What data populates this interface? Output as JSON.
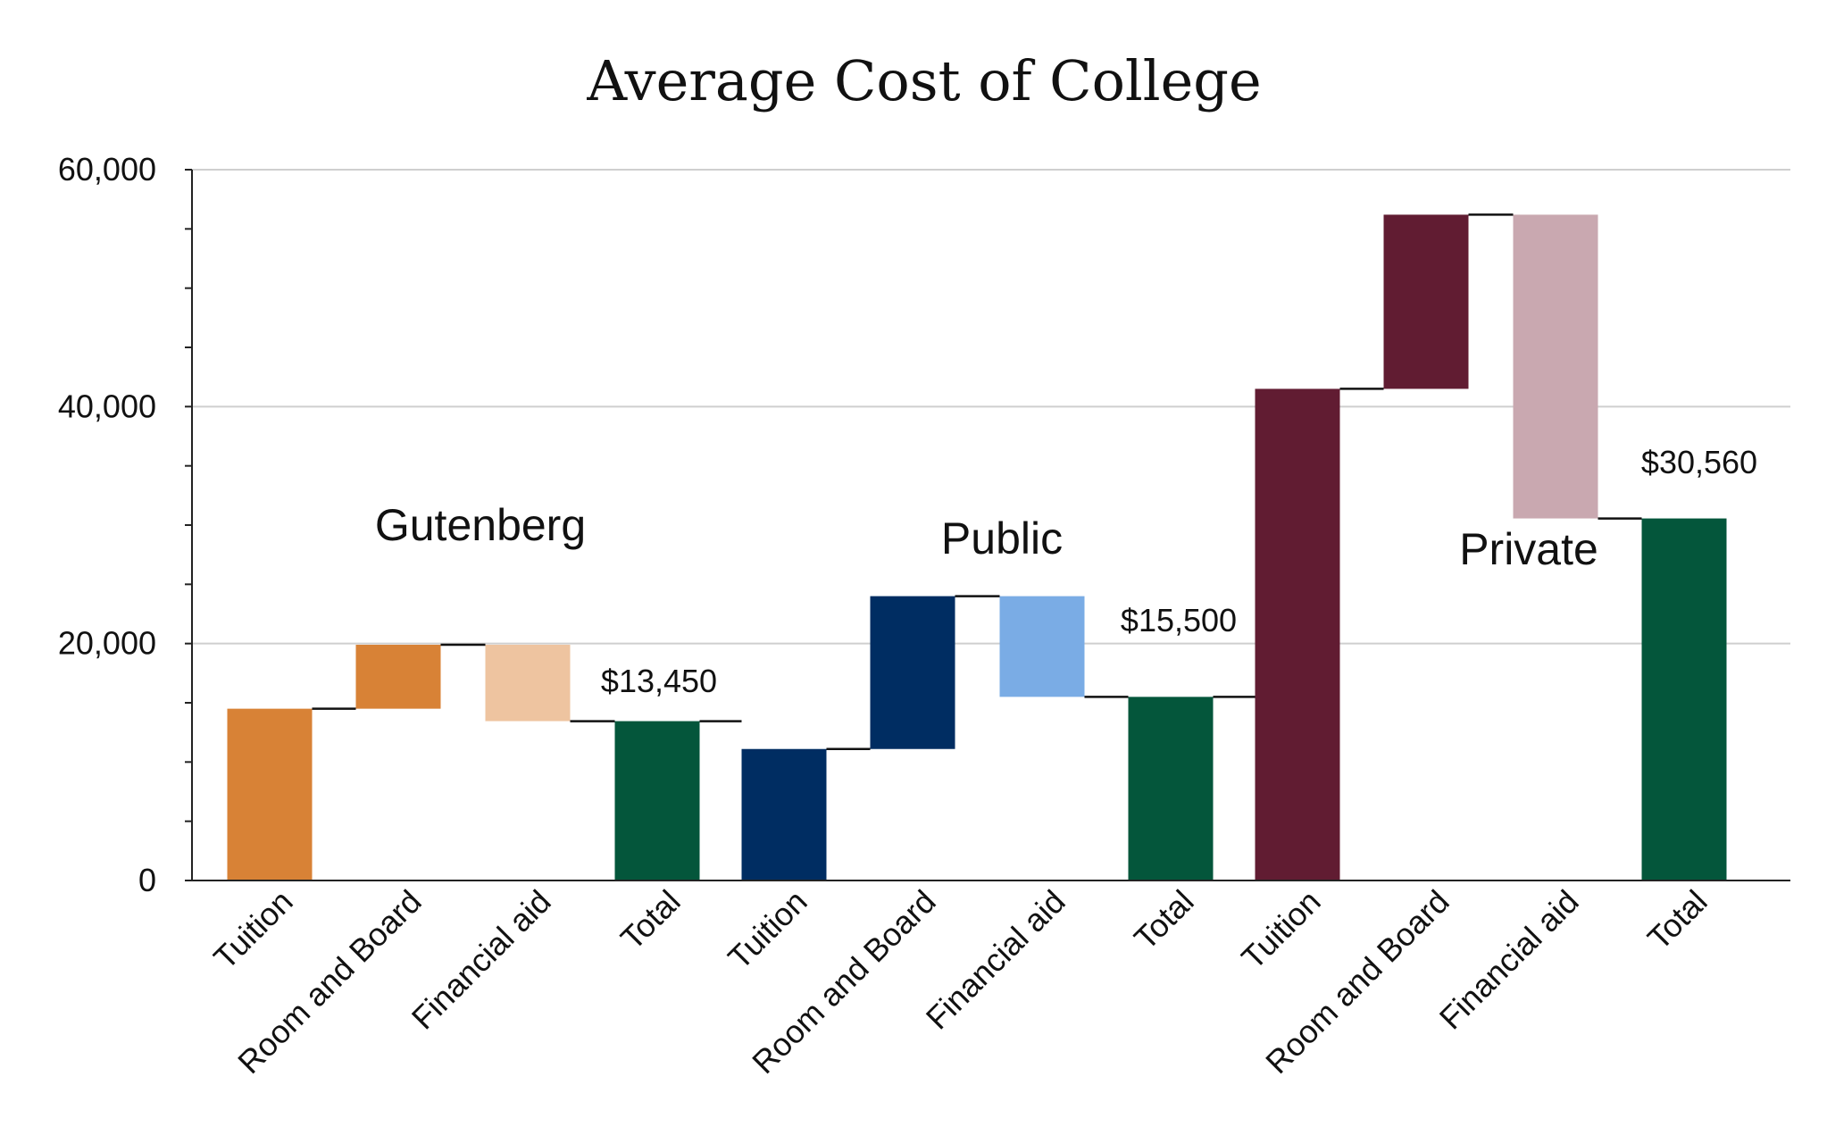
{
  "chart_data": {
    "type": "bar",
    "subtype": "waterfall",
    "title": "Average Cost of College",
    "xlabel": "",
    "ylabel": "",
    "ylim": [
      0,
      60000
    ],
    "yticks": [
      "0",
      "20,000",
      "40,000",
      "60,000"
    ],
    "grid": true,
    "categories": [
      "Tuition",
      "Room and Board",
      "Financial aid",
      "Total",
      "Tuition",
      "Room and Board",
      "Financial aid",
      "Total",
      "Tuition",
      "Room and Board",
      "Financial aid",
      "Total"
    ],
    "groups": [
      {
        "label": "Gutenberg",
        "total_label": "$13,450",
        "colors": {
          "tuition": "#D88236",
          "room": "#D88236",
          "aid": "#EEC4A0",
          "total": "#04563B"
        },
        "bars": [
          {
            "category": "Tuition",
            "start": 0,
            "end": 14500
          },
          {
            "category": "Room and Board",
            "start": 14500,
            "end": 19900
          },
          {
            "category": "Financial aid",
            "start": 19900,
            "end": 13450
          },
          {
            "category": "Total",
            "start": 0,
            "end": 13450
          }
        ]
      },
      {
        "label": "Public",
        "total_label": "$15,500",
        "colors": {
          "tuition": "#002D62",
          "room": "#002D62",
          "aid": "#7AACE5",
          "total": "#04563B"
        },
        "bars": [
          {
            "category": "Tuition",
            "start": 0,
            "end": 11100
          },
          {
            "category": "Room and Board",
            "start": 11100,
            "end": 24000
          },
          {
            "category": "Financial aid",
            "start": 24000,
            "end": 15500
          },
          {
            "category": "Total",
            "start": 0,
            "end": 15500
          }
        ]
      },
      {
        "label": "Private",
        "total_label": "$30,560",
        "colors": {
          "tuition": "#611C32",
          "room": "#611C32",
          "aid": "#C9A8B0",
          "total": "#04563B"
        },
        "bars": [
          {
            "category": "Tuition",
            "start": 0,
            "end": 41500
          },
          {
            "category": "Room and Board",
            "start": 41500,
            "end": 56200
          },
          {
            "category": "Financial aid",
            "start": 56200,
            "end": 30560
          },
          {
            "category": "Total",
            "start": 0,
            "end": 30560
          }
        ]
      }
    ]
  }
}
